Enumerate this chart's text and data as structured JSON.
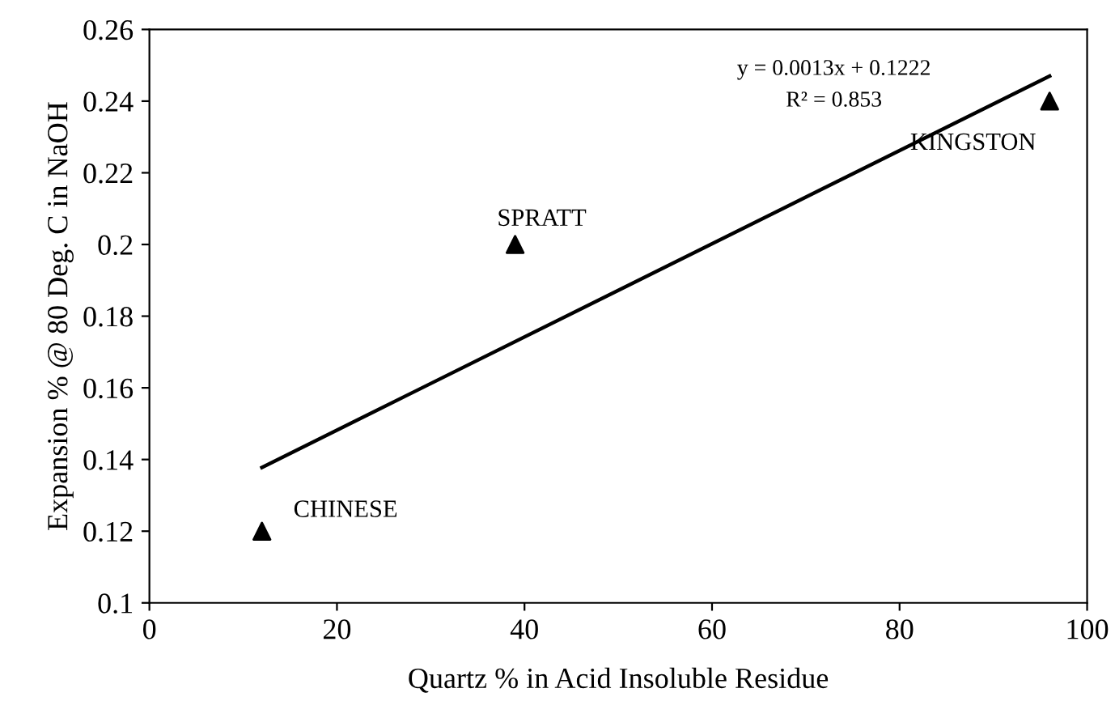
{
  "chart_data": {
    "type": "scatter",
    "xlabel": "Quartz % in Acid Insoluble Residue",
    "ylabel": "Expansion % @ 80 Deg. C in NaOH",
    "xlim": [
      0,
      100
    ],
    "xticks": [
      0,
      20,
      40,
      60,
      80,
      100
    ],
    "ylim": [
      0.1,
      0.26
    ],
    "yticks": [
      0.1,
      0.12,
      0.14,
      0.16,
      0.18,
      0.2,
      0.22,
      0.24,
      0.26
    ],
    "grid": false,
    "series": [
      {
        "color": "#000000",
        "marker": "triangle",
        "x": [
          12,
          39,
          96
        ],
        "values": [
          0.12,
          0.2,
          0.24
        ]
      },
      {
        "type": "line",
        "color": "#000000",
        "x": [
          12,
          96
        ],
        "values": [
          0.1378,
          0.247
        ]
      }
    ],
    "annotations": [
      {
        "text": "CHINESE",
        "x": 12,
        "y": 0.12
      },
      {
        "text": "SPRATT",
        "x": 39,
        "y": 0.2
      },
      {
        "text": "KINGSTON",
        "x": 96,
        "y": 0.24
      },
      "y = 0.0013x + 0.1222",
      "R² = 0.853"
    ]
  }
}
